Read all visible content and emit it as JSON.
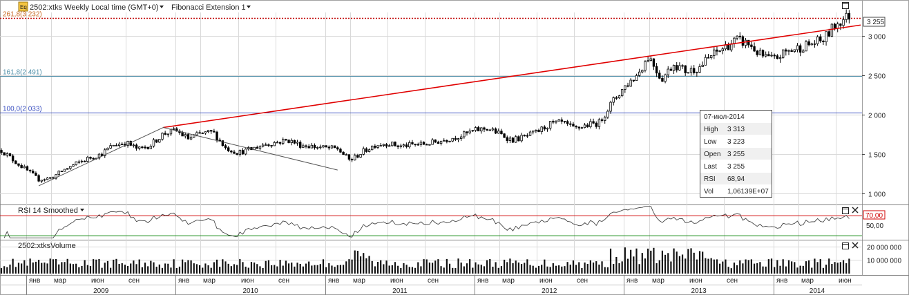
{
  "header": {
    "eq_badge": "Eq",
    "symbol_title": "2502:xtks Weekly Local time (GMT+0)",
    "study_title": "Fibonacci Extension 1"
  },
  "fib_levels": [
    {
      "label": "261,8(3 232)",
      "value": 3232,
      "color": "#c8661f"
    },
    {
      "label": "161,8(2 491)",
      "value": 2491,
      "color": "#4f8fa8"
    },
    {
      "label": "100,0(2 033)",
      "value": 2033,
      "color": "#3a4fc0"
    }
  ],
  "price_axis": {
    "ticks": [
      "3 000",
      "2 500",
      "2 000",
      "1 500",
      "1 000"
    ],
    "tick_values": [
      3000,
      2500,
      2000,
      1500,
      1000
    ],
    "range": [
      880,
      3300
    ],
    "last_price_label": "3 255",
    "last_price": 3255
  },
  "info_box": {
    "date": "07-июл-2014",
    "rows": [
      {
        "k": "High",
        "v": "3 313"
      },
      {
        "k": "Low",
        "v": "3 223"
      },
      {
        "k": "Open",
        "v": "3 255"
      },
      {
        "k": "Last",
        "v": "3 255"
      },
      {
        "k": "RSI",
        "v": "68,94"
      },
      {
        "k": "Vol",
        "v": "1,06139E+07"
      }
    ]
  },
  "rsi": {
    "title": "RSI 14 Smoothed",
    "ticks": [
      "70,00",
      "50,00"
    ],
    "tick_values": [
      70,
      50
    ],
    "range": [
      25,
      90
    ],
    "overbought": 70,
    "oversold": 30
  },
  "volume": {
    "title": "2502:xtksVolume",
    "ticks": [
      "20 000 000",
      "10 000 000"
    ],
    "tick_values": [
      20000000,
      10000000
    ],
    "range": [
      0,
      24000000
    ]
  },
  "time_axis": {
    "months": [
      "янв",
      "мар",
      "июн",
      "сен",
      "янв",
      "мар",
      "июн",
      "сен",
      "янв",
      "мар",
      "июн",
      "сен",
      "янв",
      "мар",
      "июн",
      "сен",
      "янв",
      "мар",
      "июн",
      "сен",
      "янв",
      "мар",
      "июн"
    ],
    "years": [
      "2009",
      "2010",
      "2011",
      "2012",
      "2013",
      "2014"
    ]
  },
  "chart_data": {
    "type": "candlestick",
    "interval": "weekly",
    "x_range": [
      "2008-11",
      "2014-08"
    ],
    "close_path": [
      [
        "2008-11",
        1550
      ],
      [
        "2008-12",
        1420
      ],
      [
        "2009-01",
        1300
      ],
      [
        "2009-02",
        1180
      ],
      [
        "2009-03",
        1200
      ],
      [
        "2009-04",
        1300
      ],
      [
        "2009-05",
        1380
      ],
      [
        "2009-06",
        1450
      ],
      [
        "2009-07",
        1500
      ],
      [
        "2009-08",
        1620
      ],
      [
        "2009-09",
        1650
      ],
      [
        "2009-10",
        1560
      ],
      [
        "2009-11",
        1620
      ],
      [
        "2009-12",
        1760
      ],
      [
        "2010-01",
        1800
      ],
      [
        "2010-02",
        1700
      ],
      [
        "2010-03",
        1760
      ],
      [
        "2010-04",
        1780
      ],
      [
        "2010-05",
        1580
      ],
      [
        "2010-06",
        1520
      ],
      [
        "2010-07",
        1560
      ],
      [
        "2010-08",
        1620
      ],
      [
        "2010-09",
        1650
      ],
      [
        "2010-10",
        1680
      ],
      [
        "2010-11",
        1620
      ],
      [
        "2010-12",
        1600
      ],
      [
        "2011-01",
        1580
      ],
      [
        "2011-02",
        1570
      ],
      [
        "2011-03",
        1420
      ],
      [
        "2011-04",
        1530
      ],
      [
        "2011-05",
        1620
      ],
      [
        "2011-06",
        1640
      ],
      [
        "2011-07",
        1600
      ],
      [
        "2011-08",
        1620
      ],
      [
        "2011-09",
        1630
      ],
      [
        "2011-10",
        1660
      ],
      [
        "2011-11",
        1700
      ],
      [
        "2011-12",
        1740
      ],
      [
        "2012-01",
        1800
      ],
      [
        "2012-02",
        1830
      ],
      [
        "2012-03",
        1760
      ],
      [
        "2012-04",
        1680
      ],
      [
        "2012-05",
        1720
      ],
      [
        "2012-06",
        1780
      ],
      [
        "2012-07",
        1880
      ],
      [
        "2012-08",
        1900
      ],
      [
        "2012-09",
        1820
      ],
      [
        "2012-10",
        1870
      ],
      [
        "2012-11",
        1900
      ],
      [
        "2012-12",
        2150
      ],
      [
        "2013-01",
        2350
      ],
      [
        "2013-02",
        2500
      ],
      [
        "2013-03",
        2750
      ],
      [
        "2013-04",
        2450
      ],
      [
        "2013-05",
        2650
      ],
      [
        "2013-06",
        2550
      ],
      [
        "2013-07",
        2600
      ],
      [
        "2013-08",
        2750
      ],
      [
        "2013-09",
        2850
      ],
      [
        "2013-10",
        2950
      ],
      [
        "2013-11",
        2900
      ],
      [
        "2013-12",
        2750
      ],
      [
        "2014-01",
        2700
      ],
      [
        "2014-02",
        2800
      ],
      [
        "2014-03",
        2850
      ],
      [
        "2014-04",
        2900
      ],
      [
        "2014-05",
        2950
      ],
      [
        "2014-06",
        3150
      ],
      [
        "2014-07",
        3255
      ]
    ],
    "trendline": {
      "from": [
        "2009-12",
        1840
      ],
      "to": [
        "2014-08",
        3140
      ]
    },
    "fib_drawing": [
      [
        "2009-02",
        1100
      ],
      [
        "2009-12",
        1840
      ],
      [
        "2011-02",
        1300
      ]
    ]
  },
  "colors": {
    "grid": "#d9d9d9",
    "trendline": "#e00000",
    "rsi_line": "#444444",
    "rsi_70": "#d00000",
    "rsi_30": "#008000",
    "candle": "#000000"
  },
  "icons": {
    "maximize": "maximize-icon",
    "close": "close-icon",
    "dropdown": "dropdown-arrow-icon"
  }
}
